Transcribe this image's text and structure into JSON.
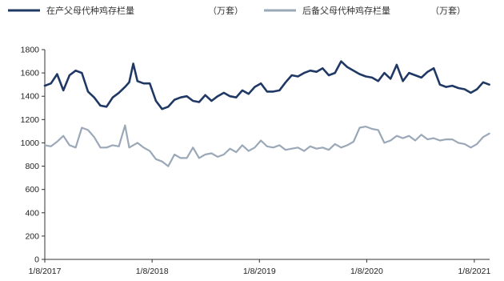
{
  "chart_data": {
    "type": "line",
    "title": "",
    "xlabel": "",
    "ylabel": "",
    "ylim": [
      0,
      1800
    ],
    "y_ticks": [
      0,
      200,
      400,
      600,
      800,
      1000,
      1200,
      1400,
      1600,
      1800
    ],
    "x_ticks": [
      "1/8/2017",
      "1/8/2018",
      "1/8/2019",
      "1/8/2020",
      "1/8/2021"
    ],
    "legend_position": "top",
    "grid": false,
    "series": [
      {
        "name": "在产父母代种鸡存栏量",
        "unit": "（万套）",
        "color": "#1f3864",
        "x": [
          "2017-01-08",
          "2017-01-29",
          "2017-02-19",
          "2017-03-12",
          "2017-04-02",
          "2017-04-23",
          "2017-05-14",
          "2017-06-04",
          "2017-06-25",
          "2017-07-16",
          "2017-08-06",
          "2017-08-27",
          "2017-09-17",
          "2017-10-08",
          "2017-10-22",
          "2017-11-05",
          "2017-11-19",
          "2017-12-10",
          "2017-12-31",
          "2018-01-21",
          "2018-02-11",
          "2018-03-04",
          "2018-03-25",
          "2018-04-15",
          "2018-05-06",
          "2018-05-27",
          "2018-06-17",
          "2018-07-08",
          "2018-07-29",
          "2018-08-19",
          "2018-09-09",
          "2018-09-30",
          "2018-10-21",
          "2018-11-11",
          "2018-12-02",
          "2018-12-23",
          "2019-01-13",
          "2019-02-03",
          "2019-02-24",
          "2019-03-17",
          "2019-04-07",
          "2019-04-28",
          "2019-05-19",
          "2019-06-09",
          "2019-06-30",
          "2019-07-21",
          "2019-08-11",
          "2019-09-01",
          "2019-09-22",
          "2019-10-13",
          "2019-11-03",
          "2019-11-24",
          "2019-12-15",
          "2020-01-05",
          "2020-01-26",
          "2020-02-16",
          "2020-03-08",
          "2020-03-29",
          "2020-04-19",
          "2020-05-10",
          "2020-05-31",
          "2020-06-21",
          "2020-07-12",
          "2020-08-02",
          "2020-08-23",
          "2020-09-13",
          "2020-10-04",
          "2020-10-25",
          "2020-11-15",
          "2020-12-06",
          "2020-12-27",
          "2021-01-17",
          "2021-02-07",
          "2021-02-28"
        ],
        "values": [
          1490,
          1510,
          1590,
          1450,
          1580,
          1620,
          1600,
          1440,
          1390,
          1320,
          1310,
          1390,
          1430,
          1480,
          1520,
          1680,
          1530,
          1510,
          1510,
          1360,
          1290,
          1310,
          1370,
          1390,
          1400,
          1360,
          1350,
          1410,
          1360,
          1400,
          1430,
          1400,
          1390,
          1450,
          1420,
          1480,
          1510,
          1440,
          1440,
          1450,
          1520,
          1580,
          1570,
          1600,
          1620,
          1610,
          1640,
          1580,
          1600,
          1700,
          1650,
          1620,
          1590,
          1570,
          1560,
          1530,
          1600,
          1550,
          1670,
          1530,
          1600,
          1580,
          1560,
          1610,
          1640,
          1500,
          1480,
          1490,
          1470,
          1460,
          1430,
          1460,
          1520,
          1500
        ]
      },
      {
        "name": "后备父母代种鸡存栏量",
        "unit": "（万套）",
        "color": "#9aa8b8",
        "x": [
          "2017-01-08",
          "2017-01-29",
          "2017-02-19",
          "2017-03-12",
          "2017-04-02",
          "2017-04-23",
          "2017-05-14",
          "2017-06-04",
          "2017-06-25",
          "2017-07-16",
          "2017-08-06",
          "2017-08-27",
          "2017-09-17",
          "2017-10-08",
          "2017-10-22",
          "2017-11-05",
          "2017-11-19",
          "2017-12-10",
          "2017-12-31",
          "2018-01-21",
          "2018-02-11",
          "2018-03-04",
          "2018-03-25",
          "2018-04-15",
          "2018-05-06",
          "2018-05-27",
          "2018-06-17",
          "2018-07-08",
          "2018-07-29",
          "2018-08-19",
          "2018-09-09",
          "2018-09-30",
          "2018-10-21",
          "2018-11-11",
          "2018-12-02",
          "2018-12-23",
          "2019-01-13",
          "2019-02-03",
          "2019-02-24",
          "2019-03-17",
          "2019-04-07",
          "2019-04-28",
          "2019-05-19",
          "2019-06-09",
          "2019-06-30",
          "2019-07-21",
          "2019-08-11",
          "2019-09-01",
          "2019-09-22",
          "2019-10-13",
          "2019-11-03",
          "2019-11-24",
          "2019-12-15",
          "2020-01-05",
          "2020-01-26",
          "2020-02-16",
          "2020-03-08",
          "2020-03-29",
          "2020-04-19",
          "2020-05-10",
          "2020-05-31",
          "2020-06-21",
          "2020-07-12",
          "2020-08-02",
          "2020-08-23",
          "2020-09-13",
          "2020-10-04",
          "2020-10-25",
          "2020-11-15",
          "2020-12-06",
          "2020-12-27",
          "2021-01-17",
          "2021-02-07",
          "2021-02-28"
        ],
        "values": [
          980,
          970,
          1010,
          1060,
          980,
          960,
          1130,
          1110,
          1050,
          960,
          960,
          980,
          970,
          1150,
          960,
          980,
          1000,
          960,
          930,
          860,
          840,
          800,
          900,
          870,
          870,
          960,
          870,
          900,
          910,
          880,
          900,
          950,
          920,
          980,
          930,
          960,
          1020,
          970,
          960,
          980,
          940,
          950,
          960,
          930,
          970,
          950,
          960,
          940,
          990,
          960,
          980,
          1010,
          1130,
          1140,
          1120,
          1110,
          1000,
          1020,
          1060,
          1040,
          1060,
          1020,
          1070,
          1030,
          1040,
          1020,
          1030,
          1030,
          1000,
          990,
          960,
          990,
          1050,
          1080
        ]
      }
    ]
  }
}
